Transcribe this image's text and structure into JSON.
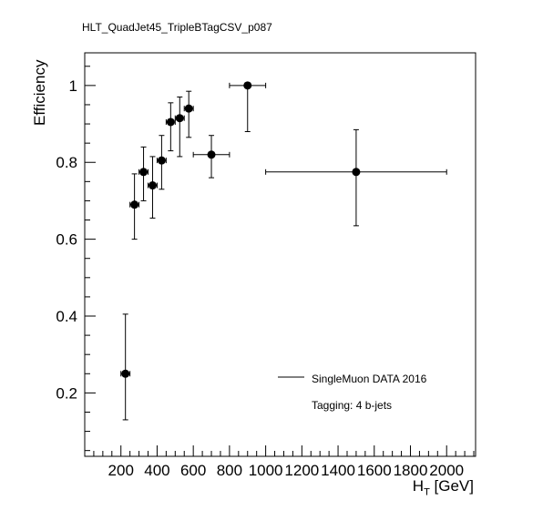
{
  "chart_data": {
    "type": "scatter",
    "title": "HLT_QuadJet45_TripleBTagCSV_p087",
    "xlabel_main": "H",
    "xlabel_sub": "T",
    "xlabel_unit": "[GeV]",
    "ylabel": "Efficiency",
    "xlim": [
      0,
      2160
    ],
    "ylim": [
      0.035,
      1.085
    ],
    "x_ticks": [
      200,
      400,
      600,
      800,
      1000,
      1200,
      1400,
      1600,
      1800,
      2000
    ],
    "x_tick_labels": [
      "200",
      "400",
      "600",
      "800",
      "1000",
      "1200",
      "1400",
      "1600",
      "1800",
      "2000"
    ],
    "y_ticks": [
      0.2,
      0.4,
      0.6,
      0.8,
      1.0
    ],
    "y_tick_labels": [
      "0.2",
      "0.4",
      "0.6",
      "0.8",
      "1"
    ],
    "grid": false,
    "legend_position": "lower-right",
    "series": [
      {
        "name": "SingleMuon DATA 2016",
        "color": "#000000",
        "points": [
          {
            "x": 225,
            "xlo": 200,
            "xhi": 250,
            "y": 0.25,
            "ylo": 0.13,
            "yhi": 0.405
          },
          {
            "x": 275,
            "xlo": 250,
            "xhi": 300,
            "y": 0.69,
            "ylo": 0.6,
            "yhi": 0.77
          },
          {
            "x": 325,
            "xlo": 300,
            "xhi": 350,
            "y": 0.775,
            "ylo": 0.7,
            "yhi": 0.84
          },
          {
            "x": 375,
            "xlo": 350,
            "xhi": 400,
            "y": 0.74,
            "ylo": 0.655,
            "yhi": 0.815
          },
          {
            "x": 425,
            "xlo": 400,
            "xhi": 450,
            "y": 0.805,
            "ylo": 0.73,
            "yhi": 0.87
          },
          {
            "x": 475,
            "xlo": 450,
            "xhi": 500,
            "y": 0.905,
            "ylo": 0.83,
            "yhi": 0.955
          },
          {
            "x": 525,
            "xlo": 500,
            "xhi": 550,
            "y": 0.915,
            "ylo": 0.815,
            "yhi": 0.97
          },
          {
            "x": 575,
            "xlo": 550,
            "xhi": 600,
            "y": 0.94,
            "ylo": 0.865,
            "yhi": 0.985
          },
          {
            "x": 700,
            "xlo": 600,
            "xhi": 800,
            "y": 0.82,
            "ylo": 0.76,
            "yhi": 0.87
          },
          {
            "x": 900,
            "xlo": 800,
            "xhi": 1000,
            "y": 1.0,
            "ylo": 0.88,
            "yhi": 1.0
          },
          {
            "x": 1500,
            "xlo": 1000,
            "xhi": 2000,
            "y": 0.775,
            "ylo": 0.635,
            "yhi": 0.885
          }
        ]
      }
    ],
    "annotations": [
      "Tagging: 4 b-jets"
    ]
  }
}
